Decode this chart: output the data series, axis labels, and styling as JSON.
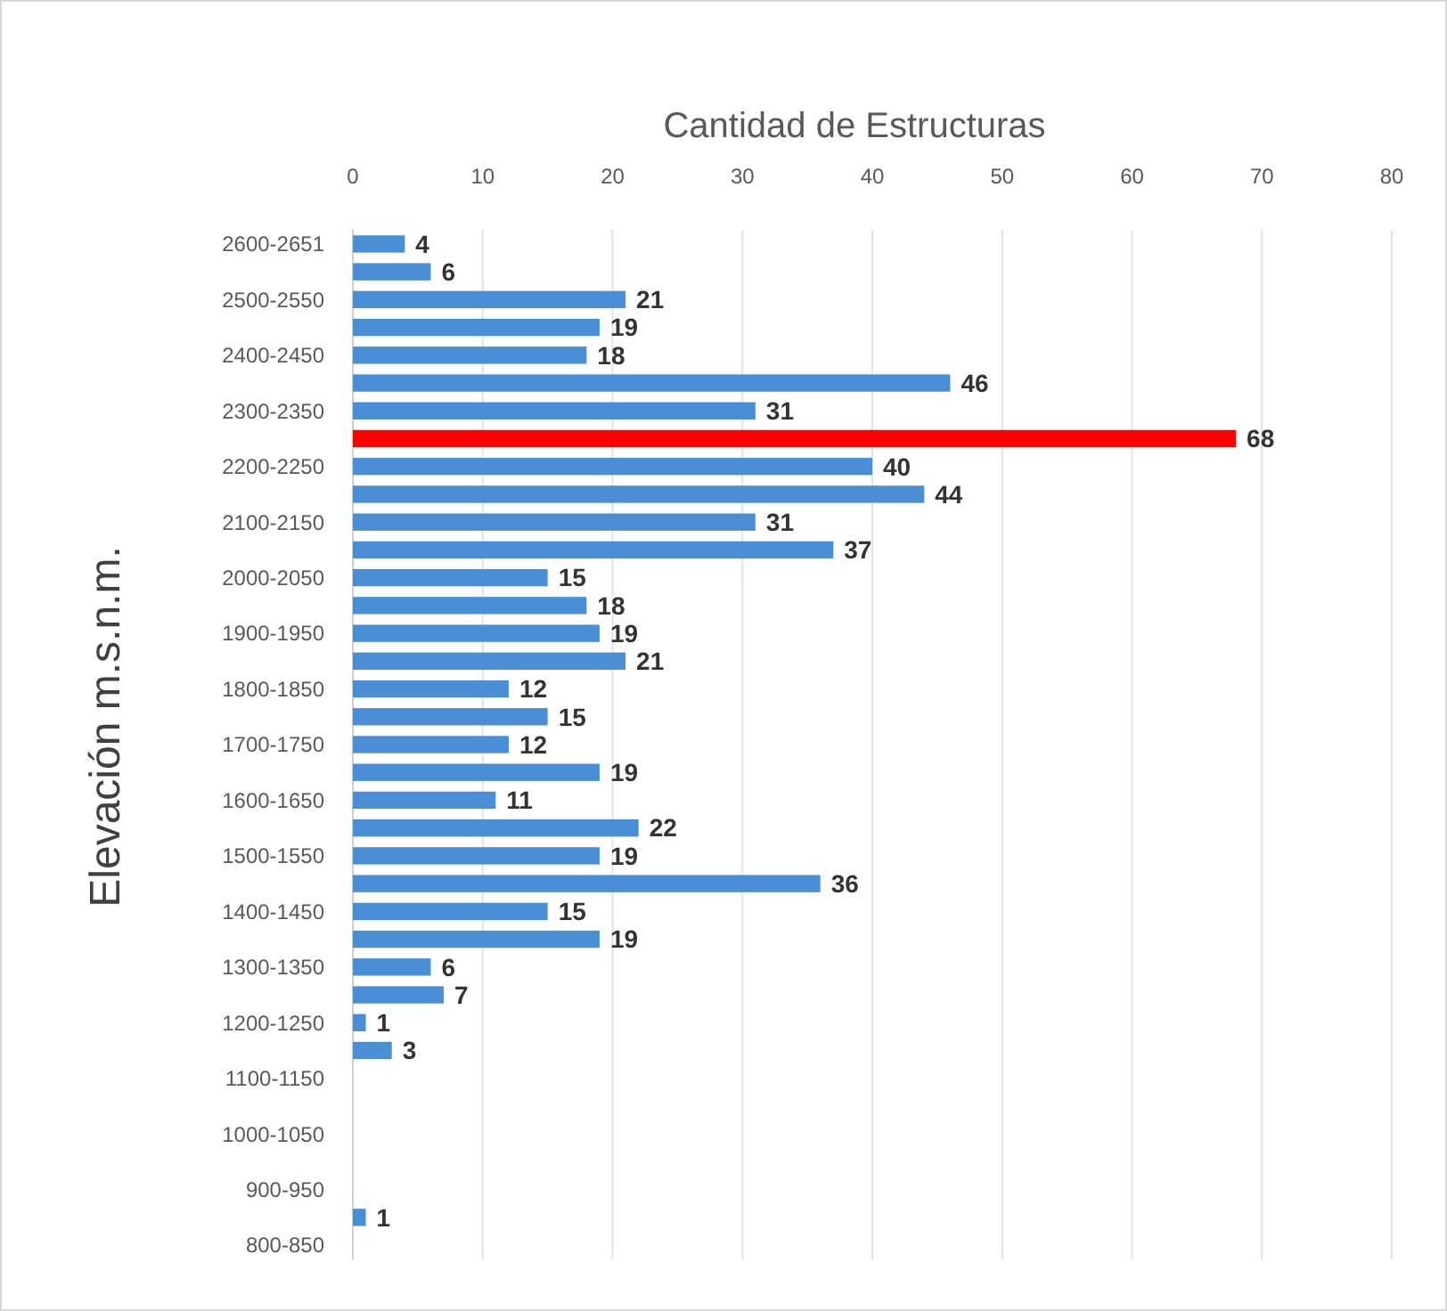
{
  "chart_data": {
    "type": "bar",
    "orientation": "horizontal",
    "xlabel": "Cantidad de Estructuras",
    "ylabel": "Elevación m.s.n.m.",
    "categories": [
      "2600-2651",
      null,
      "2500-2550",
      null,
      "2400-2450",
      null,
      "2300-2350",
      null,
      "2200-2250",
      null,
      "2100-2150",
      null,
      "2000-2050",
      null,
      "1900-1950",
      null,
      "1800-1850",
      null,
      "1700-1750",
      null,
      "1600-1650",
      null,
      "1500-1550",
      null,
      "1400-1450",
      null,
      "1300-1350",
      null,
      "1200-1250",
      null,
      "1100-1150",
      null,
      "1000-1050",
      null,
      "900-950",
      null,
      "800-850"
    ],
    "values": [
      4,
      6,
      21,
      19,
      18,
      46,
      31,
      68,
      40,
      44,
      31,
      37,
      15,
      18,
      19,
      21,
      12,
      15,
      12,
      19,
      11,
      22,
      19,
      36,
      15,
      19,
      6,
      7,
      1,
      3,
      null,
      null,
      null,
      null,
      null,
      1,
      null
    ],
    "colors": [
      "#4a8fd6",
      "#4a8fd6",
      "#4a8fd6",
      "#4a8fd6",
      "#4a8fd6",
      "#4a8fd6",
      "#4a8fd6",
      "#ff0000",
      "#4a8fd6",
      "#4a8fd6",
      "#4a8fd6",
      "#4a8fd6",
      "#4a8fd6",
      "#4a8fd6",
      "#4a8fd6",
      "#4a8fd6",
      "#4a8fd6",
      "#4a8fd6",
      "#4a8fd6",
      "#4a8fd6",
      "#4a8fd6",
      "#4a8fd6",
      "#4a8fd6",
      "#4a8fd6",
      "#4a8fd6",
      "#4a8fd6",
      "#4a8fd6",
      "#4a8fd6",
      "#4a8fd6",
      "#4a8fd6",
      null,
      null,
      null,
      null,
      null,
      "#4a8fd6",
      null
    ],
    "xlim": [
      0,
      80
    ],
    "xticks": [
      0,
      10,
      20,
      30,
      40,
      50,
      60,
      70,
      80
    ],
    "grid": "x",
    "data_labels": true
  }
}
